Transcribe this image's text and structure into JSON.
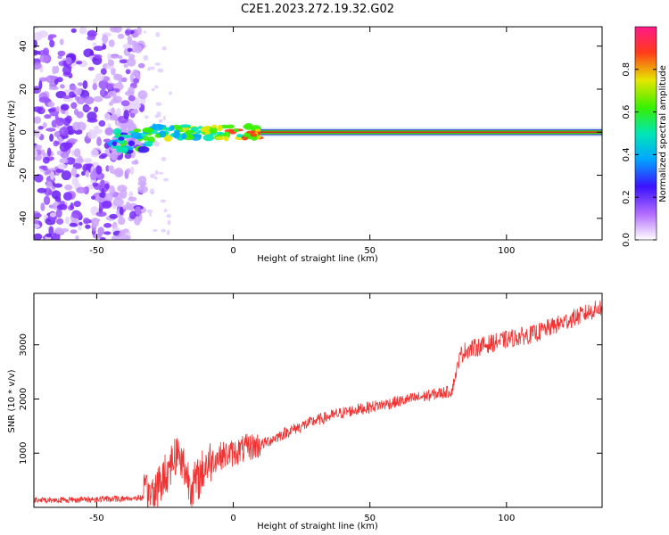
{
  "title": "C2E1.2023.272.19.32.G02",
  "colors": {
    "line": "#ee3333",
    "axis": "#000000",
    "zero_line": "#cc2a1a"
  },
  "chart_data": [
    {
      "type": "heatmap",
      "xlabel": "Height of straight line (km)",
      "ylabel": "Frequency (Hz)",
      "xlim": [
        -73,
        135
      ],
      "ylim": [
        -50,
        49
      ],
      "x_ticks": [
        -50,
        0,
        50,
        100
      ],
      "x_tick_labels": [
        "-50",
        "0",
        "50",
        "100"
      ],
      "y_ticks": [
        -40,
        -20,
        0,
        20,
        40
      ],
      "y_tick_labels": [
        "-40",
        "-20",
        "0",
        "20",
        "40"
      ],
      "colorbar": {
        "label": "Normalized spectral amplitude",
        "range": [
          0,
          1
        ],
        "ticks": [
          0.0,
          0.2,
          0.4,
          0.6,
          0.8
        ],
        "tick_labels": [
          "0.0",
          "0.2",
          "0.4",
          "0.6",
          "0.8"
        ]
      },
      "noise_region_x": [
        -73,
        -33
      ],
      "transition_region_x": [
        -33,
        10
      ],
      "signal_frequency": 0,
      "signal_start_x": 10
    },
    {
      "type": "line",
      "xlabel": "Height of straight line (km)",
      "ylabel": "SNR (10 * v/v)",
      "xlim": [
        -73,
        135
      ],
      "ylim": [
        0,
        3950
      ],
      "x_ticks": [
        -50,
        0,
        50,
        100
      ],
      "x_tick_labels": [
        "-50",
        "0",
        "50",
        "100"
      ],
      "y_ticks": [
        1000,
        2000,
        3000
      ],
      "y_tick_labels": [
        "1000",
        "2000",
        "3000"
      ],
      "series": [
        {
          "x": [
            -73,
            -60,
            -50,
            -40,
            -33,
            -30,
            -27,
            -25,
            -23,
            -21,
            -19,
            -17,
            -15,
            -13,
            -10,
            -5,
            0,
            5,
            10,
            20,
            30,
            40,
            50,
            60,
            70,
            80,
            83,
            85,
            100,
            110,
            120,
            130,
            135
          ],
          "y": [
            130,
            140,
            150,
            160,
            180,
            250,
            400,
            600,
            800,
            1000,
            900,
            600,
            400,
            500,
            800,
            950,
            1000,
            1100,
            1150,
            1400,
            1600,
            1750,
            1850,
            1950,
            2050,
            2150,
            2800,
            2900,
            3100,
            3200,
            3400,
            3600,
            3700
          ]
        }
      ]
    }
  ]
}
